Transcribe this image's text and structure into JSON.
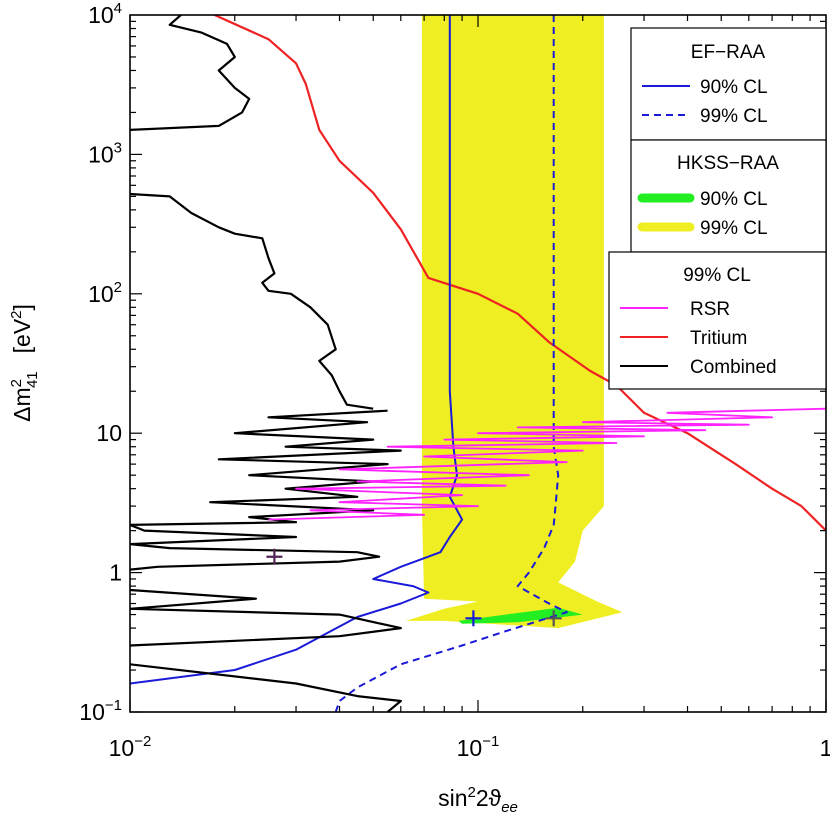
{
  "chart_data": {
    "type": "line",
    "xlabel": {
      "base": "sin",
      "sup": "2",
      "mid": "2ϑ",
      "sub": "ee"
    },
    "ylabel": {
      "pre": "Δm",
      "sup": "2",
      "sub": "41",
      "unit_open": "[eV",
      "unit_sup": "2",
      "unit_close": "]"
    },
    "xscale": "log",
    "yscale": "log",
    "xlim": [
      0.01,
      1
    ],
    "ylim": [
      0.1,
      10000
    ],
    "x_ticks": [
      {
        "value": 0.01,
        "base": "10",
        "exp": "−2"
      },
      {
        "value": 0.1,
        "base": "10",
        "exp": "−1"
      },
      {
        "value": 1,
        "base": "1",
        "exp": ""
      }
    ],
    "y_ticks": [
      {
        "value": 0.1,
        "base": "10",
        "exp": "−1"
      },
      {
        "value": 1,
        "base": "1",
        "exp": ""
      },
      {
        "value": 10,
        "base": "10",
        "exp": ""
      },
      {
        "value": 100,
        "base": "10",
        "exp": "2"
      },
      {
        "value": 1000,
        "base": "10",
        "exp": "3"
      },
      {
        "value": 10000,
        "base": "10",
        "exp": "4"
      }
    ],
    "grid": false,
    "legend_groups": [
      {
        "title": "EF−RAA",
        "items": [
          {
            "label": "90% CL",
            "color": "#1a1ad8",
            "style": "solid"
          },
          {
            "label": "99% CL",
            "color": "#1a1ad8",
            "style": "dashed"
          }
        ]
      },
      {
        "title": "HKSS−RAA",
        "items": [
          {
            "label": "90% CL",
            "color": "#22ee22",
            "style": "band"
          },
          {
            "label": "99% CL",
            "color": "#eeee22",
            "style": "band"
          }
        ]
      },
      {
        "title": "99% CL",
        "items": [
          {
            "label": "RSR",
            "color": "#ff22ff",
            "style": "solid"
          },
          {
            "label": "Tritium",
            "color": "#ee2222",
            "style": "solid"
          },
          {
            "label": "Combined",
            "color": "#000000",
            "style": "solid"
          }
        ]
      }
    ],
    "colors": {
      "ef_raa": "#1a1ad8",
      "hkss_90": "#22ee22",
      "hkss_99": "#eeee22",
      "rsr": "#ff22ff",
      "tritium": "#ee2222",
      "combined": "#000000"
    },
    "series": [
      {
        "key": "hkss_99",
        "fill": "#eeee22",
        "stroke": "none",
        "points": [
          [
            0.069,
            10000
          ],
          [
            0.23,
            10000
          ],
          [
            0.23,
            3
          ],
          [
            0.2,
            2
          ],
          [
            0.19,
            1.2
          ],
          [
            0.17,
            0.85
          ],
          [
            0.22,
            0.62
          ],
          [
            0.26,
            0.52
          ],
          [
            0.17,
            0.4
          ],
          [
            0.08,
            0.45
          ],
          [
            0.062,
            0.45
          ],
          [
            0.08,
            0.55
          ],
          [
            0.1,
            0.62
          ],
          [
            0.07,
            0.65
          ],
          [
            0.069,
            3
          ]
        ]
      },
      {
        "key": "hkss_90",
        "fill": "#22ee22",
        "stroke": "none",
        "points": [
          [
            0.088,
            0.45
          ],
          [
            0.12,
            0.5
          ],
          [
            0.17,
            0.56
          ],
          [
            0.2,
            0.5
          ],
          [
            0.13,
            0.44
          ],
          [
            0.09,
            0.43
          ]
        ]
      },
      {
        "key": "tritium",
        "stroke": "#ee2222",
        "width": 2.2,
        "points": [
          [
            0.0175,
            10000
          ],
          [
            0.025,
            6700
          ],
          [
            0.03,
            4500
          ],
          [
            0.032,
            3200
          ],
          [
            0.035,
            1500
          ],
          [
            0.04,
            900
          ],
          [
            0.05,
            530
          ],
          [
            0.06,
            290
          ],
          [
            0.072,
            130
          ],
          [
            0.1,
            100
          ],
          [
            0.13,
            72
          ],
          [
            0.16,
            45
          ],
          [
            0.21,
            28
          ],
          [
            0.25,
            22
          ],
          [
            0.3,
            14
          ],
          [
            0.4,
            10
          ],
          [
            0.55,
            6
          ],
          [
            0.7,
            4
          ],
          [
            0.85,
            3
          ],
          [
            1,
            2
          ]
        ]
      },
      {
        "key": "ef_raa_90",
        "stroke": "#1a1ad8",
        "width": 2,
        "dash": "",
        "points": [
          [
            0.083,
            10000
          ],
          [
            0.083,
            130
          ],
          [
            0.083,
            20
          ],
          [
            0.085,
            8
          ],
          [
            0.087,
            5
          ],
          [
            0.083,
            3.5
          ],
          [
            0.09,
            2.4
          ],
          [
            0.083,
            1.8
          ],
          [
            0.078,
            1.4
          ],
          [
            0.06,
            1.1
          ],
          [
            0.05,
            0.9
          ],
          [
            0.065,
            0.8
          ],
          [
            0.072,
            0.72
          ],
          [
            0.06,
            0.6
          ],
          [
            0.045,
            0.48
          ],
          [
            0.03,
            0.28
          ],
          [
            0.02,
            0.2
          ],
          [
            0.01,
            0.16
          ]
        ]
      },
      {
        "key": "ef_raa_99",
        "stroke": "#1a1ad8",
        "width": 2,
        "dash": "7,5",
        "points": [
          [
            0.165,
            10000
          ],
          [
            0.165,
            20
          ],
          [
            0.165,
            8
          ],
          [
            0.17,
            5
          ],
          [
            0.167,
            3
          ],
          [
            0.165,
            2.2
          ],
          [
            0.155,
            1.5
          ],
          [
            0.14,
            1.0
          ],
          [
            0.13,
            0.8
          ],
          [
            0.16,
            0.6
          ],
          [
            0.18,
            0.52
          ],
          [
            0.12,
            0.38
          ],
          [
            0.09,
            0.3
          ],
          [
            0.06,
            0.22
          ],
          [
            0.045,
            0.15
          ],
          [
            0.04,
            0.12
          ],
          [
            0.039,
            0.1
          ]
        ]
      },
      {
        "key": "combined_upper",
        "stroke": "#000000",
        "width": 2.2,
        "points": [
          [
            0.014,
            10000
          ],
          [
            0.013,
            8500
          ],
          [
            0.016,
            7500
          ],
          [
            0.019,
            6200
          ],
          [
            0.02,
            5000
          ],
          [
            0.018,
            4000
          ],
          [
            0.02,
            3000
          ],
          [
            0.022,
            2500
          ],
          [
            0.021,
            2000
          ],
          [
            0.018,
            1600
          ],
          [
            0.01,
            1500
          ]
        ]
      },
      {
        "key": "combined_mid",
        "stroke": "#000000",
        "width": 2.2,
        "points": [
          [
            0.01,
            520
          ],
          [
            0.013,
            500
          ],
          [
            0.015,
            380
          ],
          [
            0.018,
            300
          ],
          [
            0.02,
            270
          ],
          [
            0.024,
            250
          ],
          [
            0.025,
            180
          ],
          [
            0.026,
            140
          ],
          [
            0.024,
            120
          ],
          [
            0.025,
            105
          ],
          [
            0.029,
            100
          ],
          [
            0.033,
            80
          ],
          [
            0.037,
            60
          ],
          [
            0.039,
            40
          ],
          [
            0.035,
            33
          ],
          [
            0.038,
            26
          ],
          [
            0.04,
            20
          ],
          [
            0.042,
            16
          ],
          [
            0.05,
            15
          ]
        ]
      },
      {
        "key": "combined_wiggle",
        "stroke": "#000000",
        "width": 2.2,
        "points": [
          [
            0.055,
            14.5
          ],
          [
            0.025,
            13
          ],
          [
            0.048,
            12
          ],
          [
            0.02,
            10
          ],
          [
            0.05,
            9
          ],
          [
            0.028,
            8
          ],
          [
            0.06,
            7.5
          ],
          [
            0.018,
            6.5
          ],
          [
            0.055,
            6
          ],
          [
            0.022,
            5
          ],
          [
            0.05,
            4.5
          ],
          [
            0.028,
            4
          ],
          [
            0.045,
            3.5
          ],
          [
            0.017,
            3.2
          ],
          [
            0.05,
            2.8
          ],
          [
            0.022,
            2.5
          ],
          [
            0.03,
            2.3
          ],
          [
            0.01,
            2.2
          ],
          [
            0.011,
            2.0
          ],
          [
            0.03,
            1.8
          ],
          [
            0.01,
            1.6
          ],
          [
            0.013,
            1.5
          ],
          [
            0.045,
            1.4
          ],
          [
            0.052,
            1.3
          ],
          [
            0.04,
            1.2
          ],
          [
            0.012,
            1.1
          ],
          [
            0.01,
            1.05
          ]
        ]
      },
      {
        "key": "combined_lower",
        "stroke": "#000000",
        "width": 2.2,
        "points": [
          [
            0.01,
            0.75
          ],
          [
            0.023,
            0.65
          ],
          [
            0.01,
            0.55
          ],
          [
            0.04,
            0.5
          ],
          [
            0.06,
            0.4
          ],
          [
            0.04,
            0.35
          ],
          [
            0.01,
            0.3
          ]
        ]
      },
      {
        "key": "combined_bottom",
        "stroke": "#000000",
        "width": 2.2,
        "points": [
          [
            0.01,
            0.22
          ],
          [
            0.03,
            0.16
          ],
          [
            0.045,
            0.13
          ],
          [
            0.06,
            0.12
          ],
          [
            0.055,
            0.1
          ]
        ]
      },
      {
        "key": "rsr",
        "stroke": "#ff22ff",
        "width": 1.8,
        "points": [
          [
            1,
            15
          ],
          [
            0.35,
            14
          ],
          [
            0.7,
            13
          ],
          [
            0.2,
            12
          ],
          [
            0.6,
            11.5
          ],
          [
            0.13,
            11
          ],
          [
            0.45,
            10.5
          ],
          [
            0.1,
            10
          ],
          [
            0.3,
            9.5
          ],
          [
            0.08,
            9
          ],
          [
            0.25,
            8.5
          ],
          [
            0.055,
            8
          ],
          [
            0.2,
            7.5
          ],
          [
            0.07,
            6.8
          ],
          [
            0.18,
            6.2
          ],
          [
            0.04,
            5.5
          ],
          [
            0.14,
            5
          ],
          [
            0.045,
            4.5
          ],
          [
            0.12,
            4.2
          ],
          [
            0.03,
            4
          ],
          [
            0.09,
            3.6
          ],
          [
            0.04,
            3.2
          ],
          [
            0.1,
            3
          ],
          [
            0.033,
            2.8
          ],
          [
            0.07,
            2.6
          ],
          [
            0.025,
            2.4
          ]
        ]
      }
    ],
    "best_fit_markers": [
      {
        "x": 0.026,
        "y": 1.3,
        "color": "#552255"
      },
      {
        "x": 0.097,
        "y": 0.47,
        "color": "#1a1ad8"
      },
      {
        "x": 0.165,
        "y": 0.47,
        "color": "#555555"
      }
    ]
  }
}
